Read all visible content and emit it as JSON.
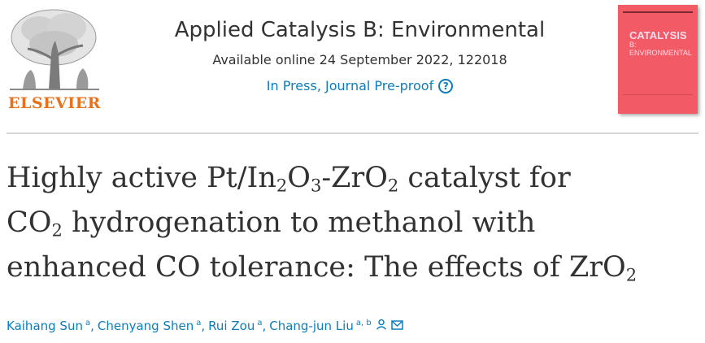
{
  "header": {
    "publisher": "ELSEVIER",
    "journal_title": "Applied Catalysis B: Environmental",
    "available_online": "Available online 24 September 2022, 122018",
    "status": "In Press, Journal Pre-proof",
    "help_icon": "?",
    "cover": {
      "word1": "CATALYSIS",
      "word2": "B: ENVIRONMENTAL",
      "color": "#f25b65"
    }
  },
  "article": {
    "title_lines": [
      [
        "Highly active Pt/In",
        "2",
        "O",
        "3",
        "-ZrO",
        "2",
        " catalyst for"
      ],
      [
        "CO",
        "2",
        " hydrogenation to methanol with"
      ],
      [
        "enhanced CO tolerance: The effects of ZrO",
        "2"
      ]
    ],
    "authors": [
      {
        "name": "Kaihang Sun",
        "aff": "a"
      },
      {
        "name": "Chenyang Shen",
        "aff": "a"
      },
      {
        "name": "Rui Zou",
        "aff": "a"
      },
      {
        "name": "Chang-jun Liu",
        "aff": "a, b"
      }
    ]
  },
  "colors": {
    "link": "#0c7dbb",
    "publisher": "#e9711c",
    "text": "#323232"
  },
  "icons": [
    "elsevier-tree-logo",
    "help-icon",
    "person-icon",
    "envelope-icon"
  ]
}
